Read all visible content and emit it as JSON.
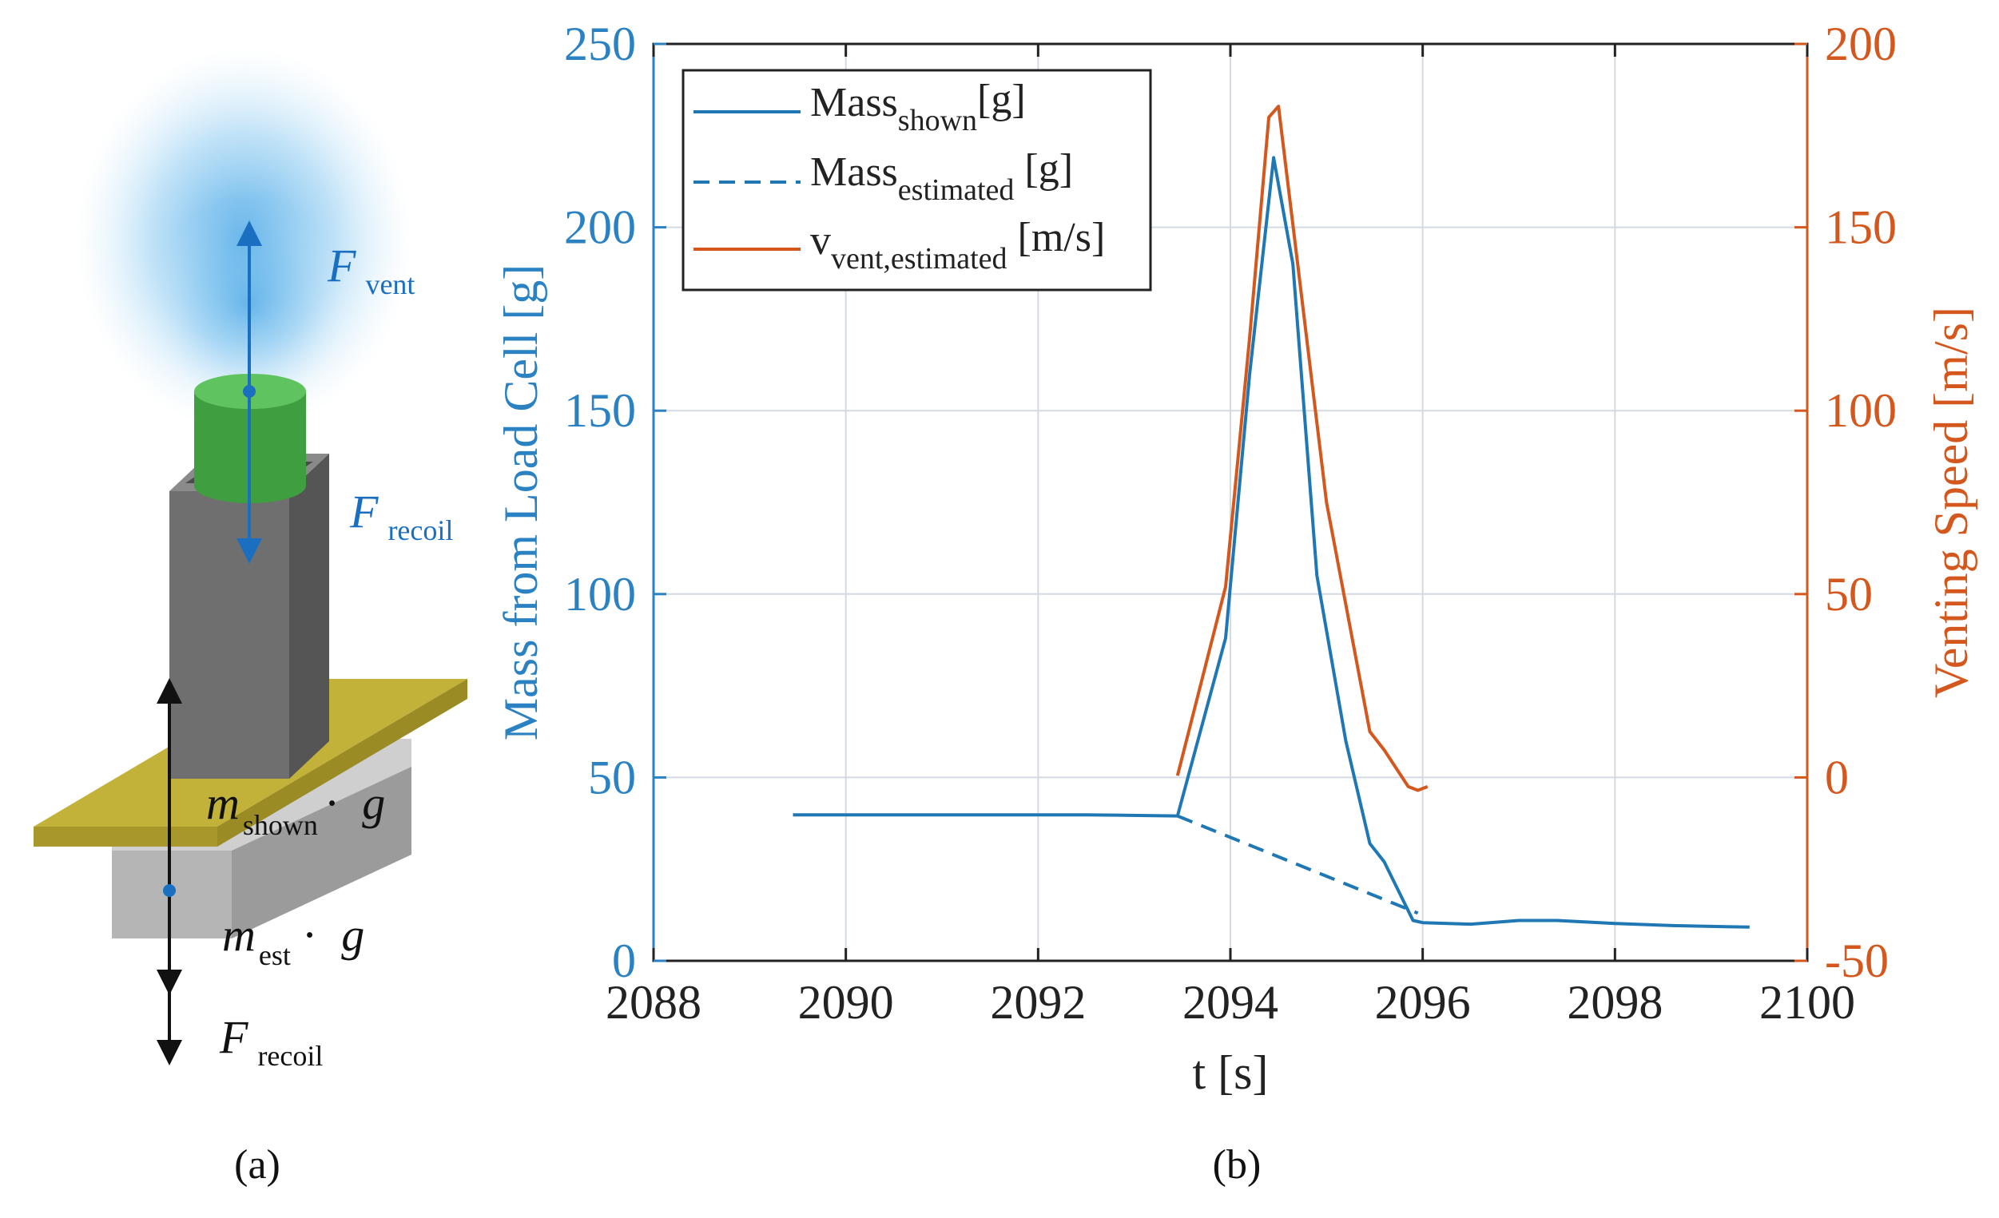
{
  "colors": {
    "mass": "#1f77b4",
    "speed": "#d4581e",
    "axis_left": "#2b82c2",
    "axis_right": "#d4581e",
    "text": "#222222",
    "grid": "#d3dae4",
    "cylinder": "#3f9e3f",
    "box": "#6f6f6f",
    "plate": "#c3b23a",
    "base": "#b5b5b5",
    "vent": "#5ab0e8"
  },
  "panel_a": {
    "label": "(a)",
    "f_vent": {
      "symbol": "F",
      "sub": "vent"
    },
    "f_recoil_top": {
      "symbol": "F",
      "sub": "recoil"
    },
    "m_shown": {
      "symbol": "m",
      "sub": "shown",
      "op": "·",
      "g": "g"
    },
    "m_est": {
      "symbol": "m",
      "sub": "est",
      "op": "·",
      "g": "g"
    },
    "f_recoil_bottom": {
      "symbol": "F",
      "sub": "recoil"
    },
    "icons": [
      "vent-gas-plume-icon",
      "cell-cylinder-icon",
      "cell-housing-icon",
      "load-plate-icon",
      "load-cell-base-icon"
    ]
  },
  "panel_b": {
    "label": "(b)",
    "legend": [
      {
        "main": "Mass",
        "sub": "shown",
        "unit": "[g]",
        "style": "solid",
        "series": "mass"
      },
      {
        "main": "Mass",
        "sub": "estimated",
        "unit": " [g]",
        "style": "dashed",
        "series": "mass"
      },
      {
        "main": "v",
        "sub": "vent,estimated",
        "unit": " [m/s]",
        "style": "solid",
        "series": "speed"
      }
    ]
  },
  "chart_data": {
    "type": "line",
    "title": "",
    "xlabel": "t [s]",
    "ylabel": "Mass from Load Cell [g]",
    "y2label": "Venting Speed [m/s]",
    "xlim": [
      2088,
      2100
    ],
    "ylim": [
      0,
      250
    ],
    "y2lim": [
      -50,
      200
    ],
    "xticks": [
      2088,
      2090,
      2092,
      2094,
      2096,
      2098,
      2100
    ],
    "yticks": [
      0,
      50,
      100,
      150,
      200,
      250
    ],
    "y2ticks": [
      -50,
      0,
      50,
      100,
      150,
      200
    ],
    "grid": true,
    "legend_position": "top-left",
    "series": [
      {
        "name": "Mass_shown [g]",
        "axis": "left",
        "style": "solid",
        "x": [
          2089.45,
          2090.5,
          2091.5,
          2092.5,
          2093.45,
          2093.95,
          2094.2,
          2094.45,
          2094.65,
          2094.9,
          2095.2,
          2095.45,
          2095.6,
          2095.9,
          2096.0,
          2096.5,
          2097.0,
          2097.4,
          2098.0,
          2098.6,
          2099.4
        ],
        "y": [
          39.8,
          39.8,
          39.8,
          39.8,
          39.5,
          88,
          160,
          219,
          190,
          105,
          60,
          32,
          27,
          11,
          10.4,
          10,
          11,
          11,
          10.2,
          9.6,
          9.2
        ]
      },
      {
        "name": "Mass_estimated [g]",
        "axis": "left",
        "style": "dashed",
        "x": [
          2093.45,
          2095.95
        ],
        "y": [
          39.5,
          13
        ]
      },
      {
        "name": "v_vent,estimated [m/s]",
        "axis": "right",
        "style": "solid",
        "x": [
          2093.45,
          2093.95,
          2094.2,
          2094.4,
          2094.5,
          2094.7,
          2095.0,
          2095.45,
          2095.6,
          2095.85,
          2095.95,
          2096.05
        ],
        "y": [
          0.5,
          52,
          120,
          180,
          183,
          140,
          75,
          12.5,
          7.5,
          -2.5,
          -3.5,
          -2.5
        ]
      }
    ]
  }
}
